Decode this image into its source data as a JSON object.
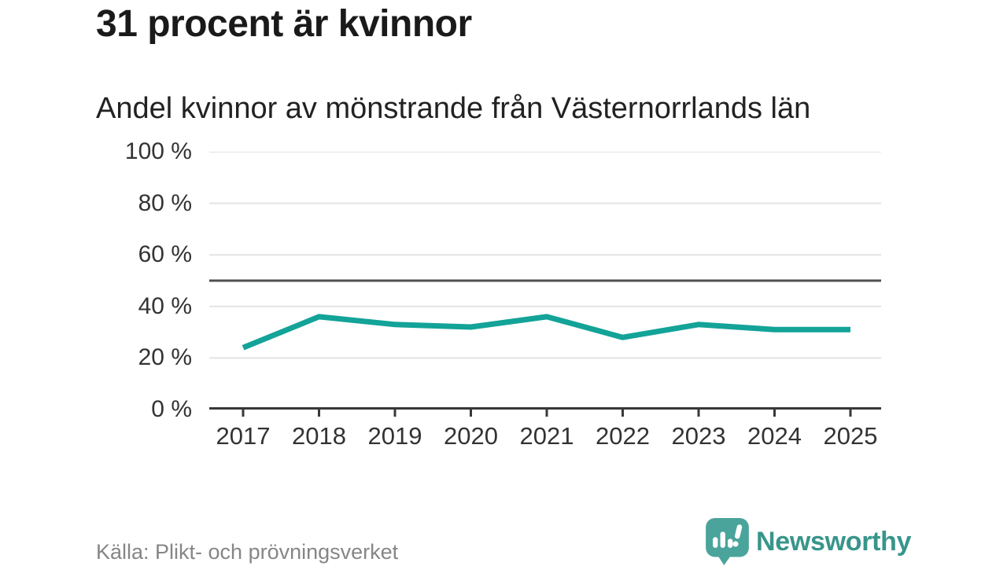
{
  "header": {
    "title": "31 procent är kvinnor",
    "subtitle": "Andel kvinnor av mönstrande från Västernorrlands län"
  },
  "chart_data": {
    "type": "line",
    "title": "31 procent är kvinnor",
    "subtitle": "Andel kvinnor av mönstrande från Västernorrlands län",
    "categories": [
      "2017",
      "2018",
      "2019",
      "2020",
      "2021",
      "2022",
      "2023",
      "2024",
      "2025"
    ],
    "values": [
      24,
      36,
      33,
      32,
      36,
      28,
      33,
      31,
      31
    ],
    "ylim": [
      0,
      100
    ],
    "yticks": [
      0,
      20,
      40,
      60,
      80,
      100
    ],
    "ytick_suffix": " %",
    "reference_line": 50,
    "grid": true,
    "legend": false,
    "colors": {
      "line": "#13a398",
      "reference": "#4f4f4f",
      "grid": "#e3e3e3",
      "axis": "#383838",
      "tick_text": "#333333"
    }
  },
  "footer": {
    "source": "Källa: Plikt- och prövningsverket",
    "brand": "Newsworthy",
    "brand_color": "#38958b",
    "brand_icon": "speech-bubble-bar-chart-exclamation",
    "brand_icon_color": "#4aa49b"
  }
}
